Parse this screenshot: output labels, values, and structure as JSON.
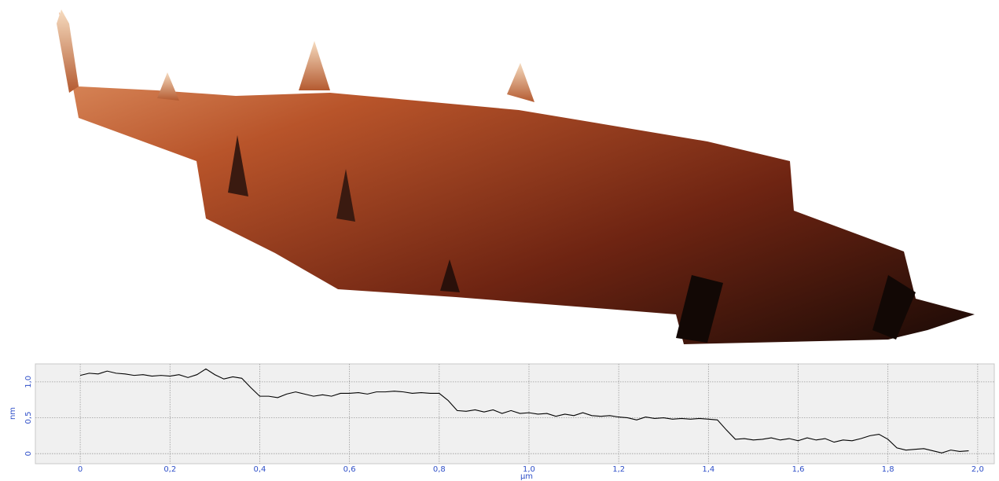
{
  "chart_data": {
    "type": "line",
    "x_label": "µm",
    "y_label": "nm",
    "color": "#000000",
    "grid": true,
    "x": [
      0,
      0.02,
      0.04,
      0.06,
      0.08,
      0.1,
      0.12,
      0.14,
      0.16,
      0.18,
      0.2,
      0.22,
      0.24,
      0.26,
      0.28,
      0.3,
      0.32,
      0.34,
      0.36,
      0.38,
      0.4,
      0.42,
      0.44,
      0.46,
      0.48,
      0.5,
      0.52,
      0.54,
      0.56,
      0.58,
      0.6,
      0.62,
      0.64,
      0.66,
      0.68,
      0.7,
      0.72,
      0.74,
      0.76,
      0.78,
      0.8,
      0.82,
      0.84,
      0.86,
      0.88,
      0.9,
      0.92,
      0.94,
      0.96,
      0.98,
      1.0,
      1.02,
      1.04,
      1.06,
      1.08,
      1.1,
      1.12,
      1.14,
      1.16,
      1.18,
      1.2,
      1.22,
      1.24,
      1.26,
      1.28,
      1.3,
      1.32,
      1.34,
      1.36,
      1.38,
      1.4,
      1.42,
      1.44,
      1.46,
      1.48,
      1.5,
      1.52,
      1.54,
      1.56,
      1.58,
      1.6,
      1.62,
      1.64,
      1.66,
      1.68,
      1.7,
      1.72,
      1.74,
      1.76,
      1.78,
      1.8,
      1.82,
      1.84,
      1.86,
      1.88,
      1.9,
      1.92,
      1.94,
      1.96,
      1.98
    ],
    "values": [
      1.09,
      1.12,
      1.11,
      1.15,
      1.12,
      1.11,
      1.09,
      1.1,
      1.08,
      1.09,
      1.08,
      1.1,
      1.06,
      1.1,
      1.18,
      1.1,
      1.04,
      1.07,
      1.05,
      0.92,
      0.8,
      0.8,
      0.78,
      0.83,
      0.86,
      0.83,
      0.8,
      0.82,
      0.8,
      0.84,
      0.84,
      0.85,
      0.83,
      0.86,
      0.86,
      0.87,
      0.86,
      0.84,
      0.85,
      0.84,
      0.84,
      0.74,
      0.6,
      0.59,
      0.61,
      0.58,
      0.61,
      0.56,
      0.6,
      0.56,
      0.57,
      0.55,
      0.56,
      0.52,
      0.55,
      0.53,
      0.57,
      0.53,
      0.52,
      0.53,
      0.51,
      0.5,
      0.47,
      0.51,
      0.49,
      0.5,
      0.48,
      0.49,
      0.48,
      0.49,
      0.48,
      0.47,
      0.33,
      0.2,
      0.21,
      0.19,
      0.2,
      0.22,
      0.19,
      0.21,
      0.18,
      0.22,
      0.19,
      0.21,
      0.16,
      0.19,
      0.18,
      0.21,
      0.25,
      0.27,
      0.2,
      0.08,
      0.05,
      0.06,
      0.07,
      0.04,
      0.01,
      0.05,
      0.03,
      0.04
    ],
    "xlim": [
      -0.1,
      2.037
    ],
    "ylim": [
      -0.14,
      1.25
    ],
    "xticks": [
      0,
      {
        "value": 0.2,
        "label": "0,2"
      },
      {
        "value": 0.4,
        "label": "0,4"
      },
      {
        "value": 0.6,
        "label": "0,6"
      },
      {
        "value": 0.8,
        "label": "0,8"
      },
      {
        "value": 1.0,
        "label": "1,0"
      },
      {
        "value": 1.2,
        "label": "1,2"
      },
      {
        "value": 1.4,
        "label": "1,4"
      },
      {
        "value": 1.6,
        "label": "1,6"
      },
      {
        "value": 1.8,
        "label": "1,8"
      },
      {
        "value": 2.0,
        "label": "2,0"
      }
    ],
    "yticks": [
      0,
      {
        "value": 0.5,
        "label": "0,5"
      },
      {
        "value": 1.0,
        "label": "1,0"
      }
    ]
  }
}
